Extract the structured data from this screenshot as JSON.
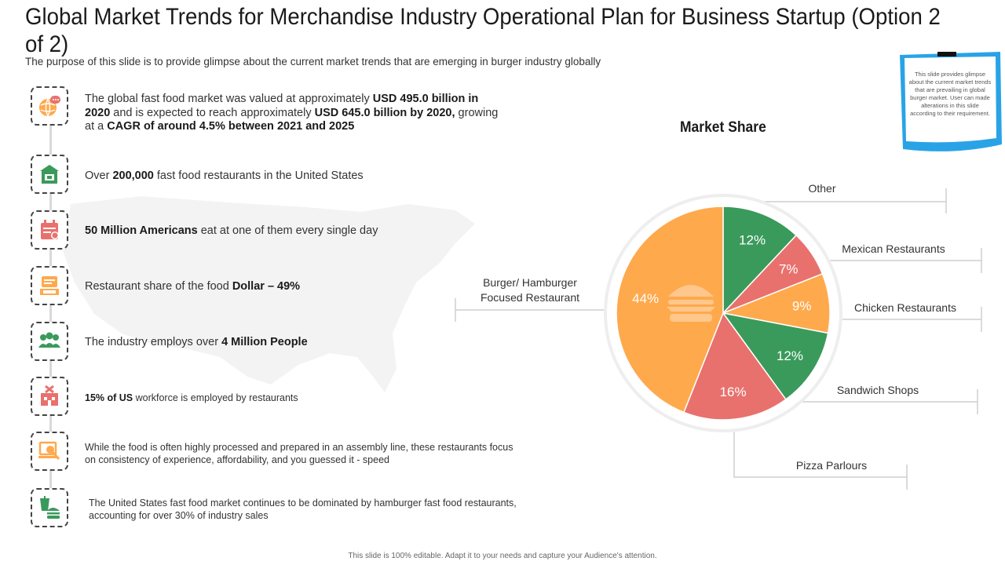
{
  "title": "Global Market Trends for Merchandise Industry Operational Plan for Business Startup (Option 2 of 2)",
  "subtitle": "The purpose of this slide is to provide glimpse about the current market trends that are emerging in burger industry globally",
  "facts": [
    {
      "icon": "globe-chat-icon",
      "parts": [
        {
          "t": "The global fast food market was valued at approximately ",
          "b": false
        },
        {
          "t": "USD 495.0 billion in 2020",
          "b": true
        },
        {
          "t": " and is expected to reach approximately ",
          "b": false
        },
        {
          "t": "USD 645.0 billion by 2020,",
          "b": true
        },
        {
          "t": " growing at a ",
          "b": false
        },
        {
          "t": "CAGR of around 4.5% between 2021 and 2025",
          "b": true
        }
      ]
    },
    {
      "icon": "store-icon",
      "parts": [
        {
          "t": "Over ",
          "b": false
        },
        {
          "t": "200,000",
          "b": true
        },
        {
          "t": " fast food restaurants in the United States",
          "b": false
        }
      ]
    },
    {
      "icon": "calendar-icon",
      "parts": [
        {
          "t": "50 Million Americans",
          "b": true
        },
        {
          "t": " eat at one of them every single day",
          "b": false
        }
      ]
    },
    {
      "icon": "menu-board-icon",
      "parts": [
        {
          "t": "Restaurant share of the food ",
          "b": false
        },
        {
          "t": "Dollar – 49%",
          "b": true
        }
      ]
    },
    {
      "icon": "people-icon",
      "parts": [
        {
          "t": "The industry employs over ",
          "b": false
        },
        {
          "t": "4 Million People",
          "b": true
        }
      ]
    },
    {
      "icon": "restaurant-building-icon",
      "parts": [
        {
          "t": "15% of US",
          "b": true
        },
        {
          "t": " workforce is employed by restaurants",
          "b": false
        }
      ]
    },
    {
      "icon": "search-laptop-icon",
      "parts": [
        {
          "t": "While the food is often highly processed and prepared in an assembly line, these restaurants focus on consistency of experience, affordability, and you guessed it - speed",
          "b": false
        }
      ]
    },
    {
      "icon": "burger-drink-icon",
      "parts": [
        {
          "t": "The United States fast food market continues to be dominated by hamburger fast food restaurants, accounting for over 30% of industry sales",
          "b": false
        }
      ]
    }
  ],
  "chart_data": {
    "type": "pie",
    "title": "Market Share",
    "categories": [
      "Other",
      "Mexican Restaurants",
      "Chicken Restaurants",
      "Sandwich Shops",
      "Pizza Parlours",
      "Burger/ Hamburger Focused Restaurant"
    ],
    "values": [
      12,
      7,
      9,
      12,
      16,
      44
    ],
    "value_labels": [
      "12%",
      "7%",
      "9%",
      "12%",
      "16%",
      "44%"
    ],
    "colors": [
      "#3a9a5b",
      "#e8716d",
      "#ffa94d",
      "#3a9a5b",
      "#e8716d",
      "#ffa94d"
    ],
    "start": "12 o'clock",
    "direction": "clockwise"
  },
  "note": "This slide provides glimpse about the current market trends that are prevailing in global burger market. User can made alterations in this slide according to their requirement.",
  "footer": "This slide is 100% editable. Adapt it to your needs and capture your Audience's attention."
}
